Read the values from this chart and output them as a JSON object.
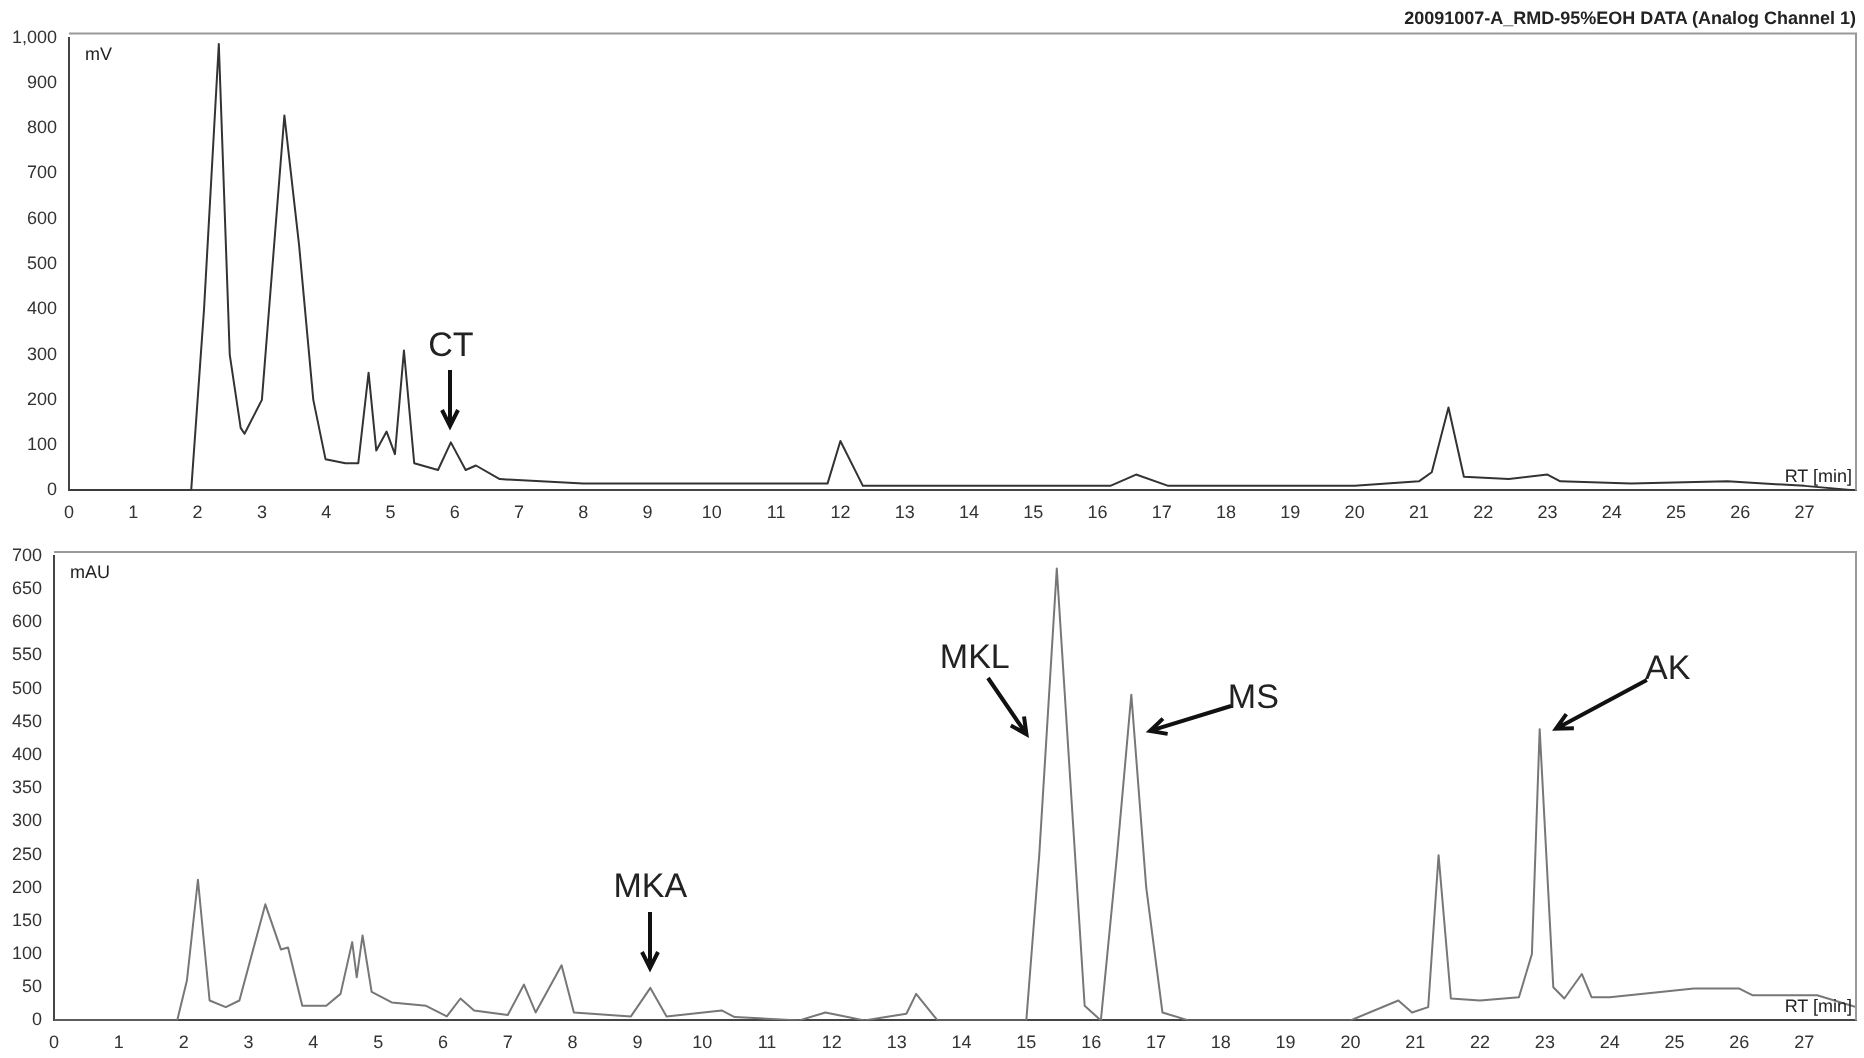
{
  "chart_data": [
    {
      "type": "line",
      "title": "20091007-A_RMD-95%EOH DATA (Analog Channel 1)",
      "xlabel": "RT [min]",
      "ylabel": "mV",
      "color": "#333333",
      "x": [
        0,
        1.9,
        2.1,
        2.33,
        2.5,
        2.67,
        2.73,
        3.0,
        3.35,
        3.58,
        3.8,
        3.99,
        4.3,
        4.5,
        4.66,
        4.78,
        4.94,
        5.07,
        5.21,
        5.37,
        5.74,
        5.94,
        6.17,
        6.33,
        6.7,
        8,
        11.8,
        12.0,
        12.35,
        16.2,
        16.6,
        17.1,
        20,
        21.0,
        21.2,
        21.46,
        21.7,
        22.4,
        23.0,
        23.2,
        24.3,
        25.8,
        27,
        27.8
      ],
      "values": [
        0,
        0,
        400,
        986,
        300,
        138,
        125,
        200,
        828,
        540,
        200,
        69,
        60,
        60,
        260,
        88,
        130,
        80,
        309,
        60,
        45,
        106,
        45,
        55,
        25,
        15,
        15,
        109,
        10,
        10,
        35,
        10,
        10,
        20,
        40,
        183,
        30,
        25,
        35,
        20,
        15,
        20,
        10,
        0
      ],
      "xlim": [
        0,
        27.8
      ],
      "xticks": [
        0,
        1,
        2,
        3,
        4,
        5,
        6,
        7,
        8,
        9,
        10,
        11,
        12,
        13,
        14,
        15,
        16,
        17,
        18,
        19,
        20,
        21,
        22,
        23,
        24,
        25,
        26,
        27
      ],
      "ylim": [
        0,
        1000
      ],
      "yticks": [
        0,
        100,
        200,
        300,
        400,
        500,
        600,
        700,
        800,
        900,
        {
          "value": 1000,
          "label": "1,000"
        }
      ],
      "annotations": [
        {
          "text": "CT",
          "x": 5.94,
          "y": 106
        }
      ]
    },
    {
      "type": "line",
      "xlabel": "RT [min]",
      "ylabel": "mAU",
      "color": "#777777",
      "x": [
        0,
        1.9,
        2.05,
        2.22,
        2.4,
        2.65,
        2.86,
        3.26,
        3.5,
        3.61,
        3.83,
        4.2,
        4.42,
        4.6,
        4.67,
        4.76,
        4.9,
        5.21,
        5.74,
        6.06,
        6.27,
        6.48,
        7.0,
        7.25,
        7.43,
        7.83,
        8.02,
        8.9,
        9.2,
        9.45,
        10.3,
        10.5,
        11.5,
        11.9,
        12.5,
        13.15,
        13.3,
        13.63,
        15.0,
        15.2,
        15.47,
        15.9,
        16.15,
        16.4,
        16.62,
        16.85,
        17.1,
        17.5,
        20.0,
        20.74,
        20.95,
        21.2,
        21.36,
        21.55,
        22.0,
        22.6,
        22.8,
        22.92,
        23.13,
        23.3,
        23.57,
        23.72,
        24,
        25.3,
        26,
        26.2,
        27.2,
        27.8
      ],
      "values": [
        0,
        0,
        60,
        212,
        30,
        20,
        30,
        175,
        107,
        110,
        22,
        22,
        40,
        118,
        65,
        128,
        43,
        27,
        22,
        6,
        33,
        15,
        8,
        54,
        12,
        83,
        12,
        6,
        49,
        6,
        15,
        5,
        0,
        12,
        0,
        10,
        40,
        0,
        0,
        250,
        681,
        22,
        0,
        250,
        491,
        200,
        12,
        0,
        0,
        30,
        12,
        20,
        249,
        33,
        30,
        35,
        100,
        439,
        50,
        33,
        70,
        35,
        35,
        48,
        48,
        38,
        38,
        20
      ],
      "xlim": [
        0,
        27.8
      ],
      "xticks": [
        0,
        1,
        2,
        3,
        4,
        5,
        6,
        7,
        8,
        9,
        10,
        11,
        12,
        13,
        14,
        15,
        16,
        17,
        18,
        19,
        20,
        21,
        22,
        23,
        24,
        25,
        26,
        27
      ],
      "ylim": [
        0,
        700
      ],
      "yticks": [
        0,
        50,
        100,
        150,
        200,
        250,
        300,
        350,
        400,
        450,
        500,
        550,
        600,
        650,
        700
      ],
      "annotations": [
        {
          "text": "MKA",
          "x": 9.2,
          "y": 49
        },
        {
          "text": "MKL",
          "x": 15.47,
          "y": 681
        },
        {
          "text": "MS",
          "x": 16.62,
          "y": 491
        },
        {
          "text": "AK",
          "x": 22.92,
          "y": 439
        }
      ]
    }
  ]
}
